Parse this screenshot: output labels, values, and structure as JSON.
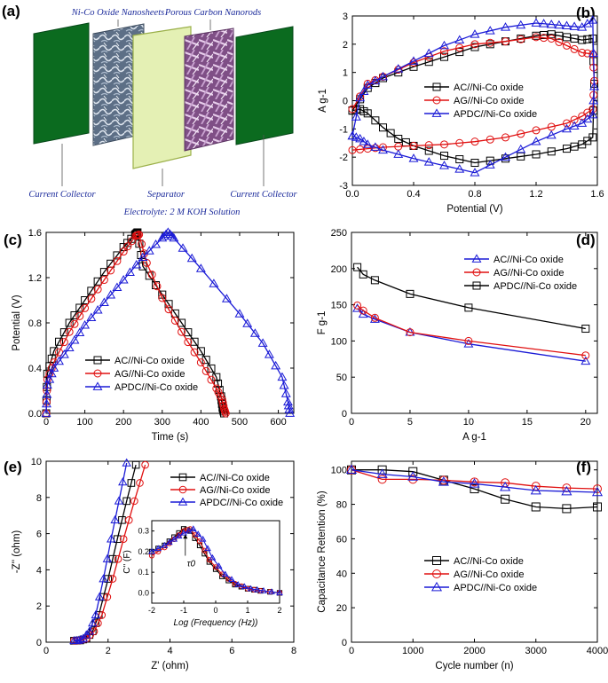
{
  "colors": {
    "ac": "#000000",
    "ag": "#e01010",
    "apdc": "#1a1ad6",
    "collector": "#0b6b1f",
    "separator": "#e4f0b4",
    "label_blue": "#1b2a9b"
  },
  "panel_a": {
    "label": "(a)",
    "nickel_label": "Ni-Co Oxide Nanosheets",
    "carbon_label": "Porous Carbon Nanorods",
    "collector_left": "Current Collector",
    "separator_label": "Separator",
    "collector_right": "Current Collector",
    "electrolyte": "Electrolyte: 2 M KOH Solution"
  },
  "chart_data": [
    {
      "id": "b",
      "label": "(b)",
      "type": "line",
      "xlabel": "Potential (V)",
      "ylabel": "A g-1",
      "xlim": [
        0,
        1.6
      ],
      "ylim": [
        -3,
        3
      ],
      "xticks": [
        0.0,
        0.4,
        0.8,
        1.2,
        1.6
      ],
      "yticks": [
        -3,
        -2,
        -1,
        0,
        1,
        2,
        3
      ],
      "tick_labels_x": [
        "0.0",
        "0.4",
        "0.8",
        "1.2",
        "1.6"
      ],
      "tick_labels_y": [
        "-3",
        "-2",
        "-1",
        "0",
        "1",
        "2",
        "3"
      ],
      "legend": {
        "position": "middle-right",
        "entries": [
          "AC//Ni-Co oxide",
          "AG//Ni-Co oxide",
          "APDC//Ni-Co oxide"
        ]
      },
      "series": [
        {
          "name": "AC//Ni-Co oxide",
          "key": "ac",
          "marker": "square",
          "x": [
            0,
            0.1,
            0.2,
            0.4,
            0.6,
            0.8,
            1.0,
            1.2,
            1.3,
            1.4,
            1.5,
            1.57,
            1.58,
            1.57,
            1.5,
            1.4,
            1.2,
            1.0,
            0.8,
            0.6,
            0.4,
            0.3,
            0.2,
            0.1,
            0.05,
            0
          ],
          "y": [
            -0.35,
            0.45,
            0.8,
            1.2,
            1.55,
            1.9,
            2.1,
            2.3,
            2.35,
            2.25,
            2.15,
            2.2,
            0.6,
            -1.3,
            -1.55,
            -1.7,
            -1.9,
            -2.05,
            -2.2,
            -1.95,
            -1.6,
            -1.35,
            -0.95,
            -0.45,
            -0.3,
            -0.35
          ]
        },
        {
          "name": "AG//Ni-Co oxide",
          "key": "ag",
          "marker": "circle",
          "x": [
            0,
            0.1,
            0.2,
            0.4,
            0.6,
            0.8,
            1.0,
            1.2,
            1.3,
            1.4,
            1.5,
            1.57,
            1.58,
            1.57,
            1.5,
            1.4,
            1.2,
            1.0,
            0.8,
            0.6,
            0.4,
            0.2,
            0.1,
            0
          ],
          "y": [
            -0.3,
            0.6,
            0.85,
            1.35,
            1.75,
            2.0,
            2.1,
            2.25,
            2.2,
            1.95,
            1.7,
            1.65,
            0.7,
            -0.3,
            -0.55,
            -0.8,
            -1.05,
            -1.3,
            -1.45,
            -1.55,
            -1.6,
            -1.65,
            -1.7,
            -1.75
          ]
        },
        {
          "name": "APDC//Ni-Co oxide",
          "key": "apdc",
          "marker": "triangle",
          "x": [
            0,
            0.05,
            0.1,
            0.2,
            0.4,
            0.6,
            0.8,
            1.0,
            1.2,
            1.3,
            1.4,
            1.5,
            1.57,
            1.58,
            1.57,
            1.5,
            1.4,
            1.2,
            1.0,
            0.8,
            0.6,
            0.4,
            0.2,
            0.1,
            0.05,
            0
          ],
          "y": [
            -1.25,
            0.1,
            0.55,
            0.85,
            1.4,
            1.95,
            2.35,
            2.6,
            2.75,
            2.7,
            2.65,
            2.6,
            2.85,
            0.5,
            -0.5,
            -0.8,
            -1.0,
            -1.45,
            -2.0,
            -2.55,
            -2.3,
            -2.05,
            -1.75,
            -1.55,
            -1.35,
            -1.25
          ]
        }
      ]
    },
    {
      "id": "c",
      "label": "(c)",
      "type": "line",
      "xlabel": "Time (s)",
      "ylabel": "Potential (V)",
      "xlim": [
        0,
        640
      ],
      "ylim": [
        0,
        1.6
      ],
      "xticks": [
        0,
        100,
        200,
        300,
        400,
        500,
        600
      ],
      "yticks": [
        0.0,
        0.4,
        0.8,
        1.2,
        1.6
      ],
      "tick_labels_x": [
        "0",
        "100",
        "200",
        "300",
        "400",
        "500",
        "600"
      ],
      "tick_labels_y": [
        "0.0",
        "0.4",
        "0.8",
        "1.2",
        "1.6"
      ],
      "legend": {
        "position": "bottom-left",
        "entries": [
          "AC//Ni-Co oxide",
          "AG//Ni-Co oxide",
          "APDC//Ni-Co oxide"
        ]
      },
      "series": [
        {
          "name": "AC//Ni-Co oxide",
          "key": "ac",
          "marker": "square",
          "x": [
            0,
            3,
            20,
            60,
            100,
            150,
            200,
            230,
            236,
            250,
            300,
            350,
            400,
            440,
            452,
            456,
            460
          ],
          "y": [
            0,
            0.35,
            0.55,
            0.8,
            1.0,
            1.25,
            1.47,
            1.58,
            1.6,
            1.3,
            1.05,
            0.8,
            0.55,
            0.32,
            0.15,
            0.05,
            0
          ]
        },
        {
          "name": "AG//Ni-Co oxide",
          "key": "ag",
          "marker": "circle",
          "x": [
            0,
            3,
            20,
            60,
            100,
            150,
            200,
            232,
            240,
            260,
            300,
            350,
            400,
            440,
            455,
            460,
            464
          ],
          "y": [
            0,
            0.3,
            0.45,
            0.72,
            0.93,
            1.18,
            1.43,
            1.57,
            1.58,
            1.33,
            1.02,
            0.72,
            0.45,
            0.22,
            0.12,
            0.04,
            0
          ]
        },
        {
          "name": "APDC//Ni-Co oxide",
          "key": "apdc",
          "marker": "triangle",
          "x": [
            0,
            3,
            20,
            60,
            100,
            150,
            200,
            250,
            300,
            315,
            330,
            400,
            500,
            560,
            610,
            625,
            630
          ],
          "y": [
            0,
            0.25,
            0.4,
            0.58,
            0.78,
            0.98,
            1.18,
            1.38,
            1.55,
            1.6,
            1.55,
            1.28,
            0.88,
            0.62,
            0.32,
            0.1,
            0
          ]
        }
      ]
    },
    {
      "id": "d",
      "label": "(d)",
      "type": "line",
      "xlabel": "A g-1",
      "ylabel": "F g-1",
      "xlim": [
        0,
        21
      ],
      "ylim": [
        0,
        250
      ],
      "xticks": [
        0,
        5,
        10,
        15,
        20
      ],
      "yticks": [
        0,
        50,
        100,
        150,
        200,
        250
      ],
      "tick_labels_x": [
        "0",
        "5",
        "10",
        "15",
        "20"
      ],
      "tick_labels_y": [
        "0",
        "50",
        "100",
        "150",
        "200",
        "250"
      ],
      "legend": {
        "position": "top-right",
        "entries": [
          "AC//Ni-Co oxide",
          "AG//Ni-Co oxide",
          "APDC//Ni-Co oxide"
        ]
      },
      "series": [
        {
          "name": "AC//Ni-Co oxide",
          "key": "apdc",
          "marker": "triangle",
          "x": [
            0.5,
            1,
            2,
            5,
            10,
            20
          ],
          "y": [
            145,
            137,
            130,
            112,
            96,
            72
          ]
        },
        {
          "name": "AG//Ni-Co oxide",
          "key": "ag",
          "marker": "circle",
          "x": [
            0.5,
            1,
            2,
            5,
            10,
            20
          ],
          "y": [
            149,
            142,
            132,
            112,
            100,
            80
          ]
        },
        {
          "name": "APDC//Ni-Co oxide",
          "key": "ac",
          "marker": "square",
          "x": [
            0.5,
            1,
            2,
            5,
            10,
            20
          ],
          "y": [
            202,
            192,
            184,
            165,
            146,
            117
          ]
        }
      ]
    },
    {
      "id": "e",
      "label": "(e)",
      "type": "line",
      "xlabel": "Z' (ohm)",
      "ylabel": "-Z'' (ohm)",
      "xlim": [
        0,
        8
      ],
      "ylim": [
        0,
        10
      ],
      "xticks": [
        0,
        2,
        4,
        6,
        8
      ],
      "yticks": [
        0,
        2,
        4,
        6,
        8,
        10
      ],
      "tick_labels_x": [
        "0",
        "2",
        "4",
        "6",
        "8"
      ],
      "tick_labels_y": [
        "0",
        "2",
        "4",
        "6",
        "8",
        "10"
      ],
      "legend": {
        "position": "top-right",
        "entries": [
          "AC//Ni-Co oxide",
          "AG//Ni-Co oxide",
          "APDC//Ni-Co oxide"
        ]
      },
      "series": [
        {
          "name": "AC//Ni-Co oxide",
          "key": "ac",
          "marker": "square",
          "x": [
            0.9,
            1.1,
            1.3,
            1.5,
            1.7,
            2.0,
            2.3,
            2.6,
            2.9
          ],
          "y": [
            0.08,
            0.1,
            0.2,
            0.6,
            1.5,
            3.5,
            5.7,
            7.8,
            9.8
          ]
        },
        {
          "name": "AG//Ni-Co oxide",
          "key": "ag",
          "marker": "circle",
          "x": [
            0.9,
            1.1,
            1.3,
            1.55,
            1.8,
            2.15,
            2.5,
            2.85,
            3.2
          ],
          "y": [
            0.08,
            0.1,
            0.2,
            0.6,
            1.5,
            3.5,
            5.7,
            7.8,
            9.8
          ]
        },
        {
          "name": "APDC//Ni-Co oxide",
          "key": "apdc",
          "marker": "triangle",
          "x": [
            0.9,
            1.05,
            1.2,
            1.4,
            1.6,
            1.85,
            2.1,
            2.35,
            2.6
          ],
          "y": [
            0.08,
            0.1,
            0.2,
            0.6,
            1.5,
            3.5,
            5.7,
            7.8,
            9.9
          ]
        }
      ],
      "inset": {
        "xlabel": "Log (Frequency (Hz))",
        "ylabel": "C'' (F)",
        "xlim": [
          -2,
          2
        ],
        "ylim": [
          -0.05,
          0.35
        ],
        "xticks": [
          -2,
          -1,
          0,
          1,
          2
        ],
        "yticks": [
          0.0,
          0.1,
          0.2,
          0.3
        ],
        "tick_labels_x": [
          "-2",
          "-1",
          "0",
          "1",
          "2"
        ],
        "tick_labels_y": [
          "0.0",
          "0.1",
          "0.2",
          "0.3"
        ],
        "annotation": "τ0",
        "series": [
          {
            "key": "ac",
            "x": [
              -2,
              -1.6,
              -1.3,
              -1.0,
              -0.8,
              -0.5,
              -0.2,
              0.2,
              0.6,
              1.0,
              1.4,
              2.0
            ],
            "y": [
              0.2,
              0.23,
              0.27,
              0.31,
              0.3,
              0.23,
              0.15,
              0.08,
              0.04,
              0.02,
              0.01,
              0.0
            ]
          },
          {
            "key": "ag",
            "x": [
              -2,
              -1.6,
              -1.3,
              -1.0,
              -0.8,
              -0.5,
              -0.2,
              0.2,
              0.6,
              1.0,
              1.4,
              2.0
            ],
            "y": [
              0.18,
              0.22,
              0.26,
              0.3,
              0.31,
              0.25,
              0.16,
              0.09,
              0.045,
              0.02,
              0.01,
              0.0
            ]
          },
          {
            "key": "apdc",
            "x": [
              -2,
              -1.6,
              -1.3,
              -1.0,
              -0.7,
              -0.4,
              -0.1,
              0.3,
              0.7,
              1.1,
              1.5,
              2.0
            ],
            "y": [
              0.2,
              0.23,
              0.26,
              0.29,
              0.31,
              0.26,
              0.17,
              0.09,
              0.04,
              0.02,
              0.01,
              0.0
            ]
          }
        ]
      }
    },
    {
      "id": "f",
      "label": "(f)",
      "type": "line",
      "xlabel": "Cycle number (n)",
      "ylabel": "Capacitance Retention (%)",
      "xlim": [
        0,
        4000
      ],
      "ylim": [
        0,
        105
      ],
      "xticks": [
        0,
        1000,
        2000,
        3000,
        4000
      ],
      "yticks": [
        0,
        20,
        40,
        60,
        80,
        100
      ],
      "tick_labels_x": [
        "0",
        "1000",
        "2000",
        "3000",
        "4000"
      ],
      "tick_labels_y": [
        "0",
        "20",
        "40",
        "60",
        "80",
        "100"
      ],
      "legend": {
        "position": "center",
        "entries": [
          "AC//Ni-Co oxide",
          "AG//Ni-Co oxide",
          "APDC//Ni-Co oxide"
        ]
      },
      "series": [
        {
          "name": "AC//Ni-Co oxide",
          "key": "ac",
          "marker": "square",
          "x": [
            0,
            500,
            1000,
            1500,
            2000,
            2500,
            3000,
            3500,
            4000
          ],
          "y": [
            100,
            100,
            99,
            94,
            89,
            83,
            78.5,
            77.5,
            78.5
          ]
        },
        {
          "name": "AG//Ni-Co oxide",
          "key": "ag",
          "marker": "circle",
          "x": [
            0,
            500,
            1000,
            1500,
            2000,
            2500,
            3000,
            3500,
            4000
          ],
          "y": [
            100,
            94.5,
            94.5,
            94,
            93,
            92.5,
            90.5,
            89.5,
            89
          ]
        },
        {
          "name": "APDC//Ni-Co oxide",
          "key": "apdc",
          "marker": "triangle",
          "x": [
            0,
            500,
            1000,
            1500,
            2000,
            2500,
            3000,
            3500,
            4000
          ],
          "y": [
            100,
            97.5,
            96,
            93,
            92,
            90,
            88,
            87.5,
            87
          ]
        }
      ]
    }
  ]
}
